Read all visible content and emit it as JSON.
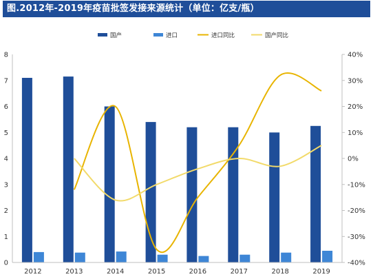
{
  "chart_data": {
    "type": "bar+line",
    "title": "图.2012年-2019年疫苗批签发接来源统计（单位：亿支/瓶）",
    "categories": [
      "2012",
      "2013",
      "2014",
      "2015",
      "2016",
      "2017",
      "2018",
      "2019"
    ],
    "series": [
      {
        "name": "国产",
        "type": "bar",
        "axis": "left",
        "color": "#1f4e99",
        "values": [
          7.1,
          7.15,
          6.0,
          5.4,
          5.2,
          5.2,
          5.0,
          5.25
        ]
      },
      {
        "name": "进口",
        "type": "bar",
        "axis": "left",
        "color": "#3e86d6",
        "values": [
          0.4,
          0.38,
          0.42,
          0.3,
          0.25,
          0.3,
          0.38,
          0.45
        ]
      },
      {
        "name": "进口同比",
        "type": "line",
        "axis": "right",
        "color": "#e8b400",
        "values": [
          null,
          -12,
          20,
          -35,
          -15,
          5,
          32,
          26
        ]
      },
      {
        "name": "国产同比",
        "type": "line",
        "axis": "right",
        "color": "#f2da6a",
        "values": [
          null,
          0,
          -16,
          -10,
          -4,
          0,
          -3,
          5
        ]
      }
    ],
    "ylim_left": [
      0,
      8
    ],
    "left_ticks": [
      "0",
      "1",
      "2",
      "3",
      "4",
      "5",
      "6",
      "7",
      "8"
    ],
    "ylim_right": [
      -40,
      40
    ],
    "right_ticks": [
      "-40%",
      "-30%",
      "-20%",
      "-10%",
      "0%",
      "10%",
      "20%",
      "30%",
      "40%"
    ],
    "legend_position": "top-center",
    "grid": false
  }
}
